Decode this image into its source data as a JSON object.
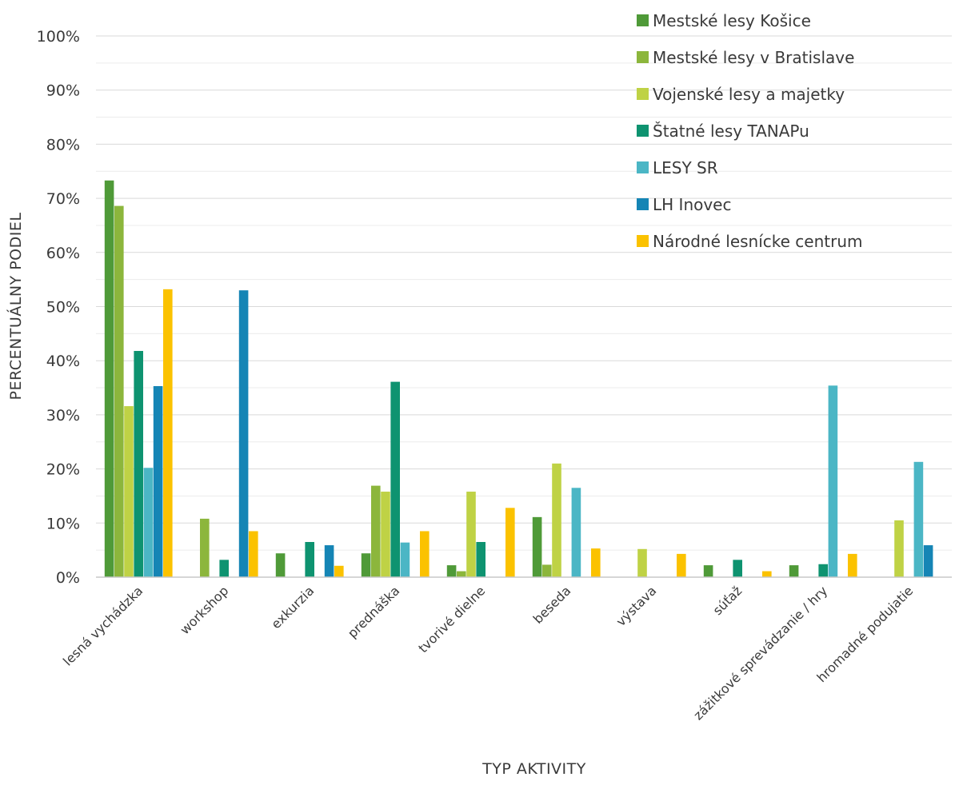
{
  "chart_data": {
    "type": "bar",
    "xlabel": "TYP AKTIVITY",
    "ylabel": "PERCENTUÁLNY PODIEL",
    "ylim": [
      0,
      100
    ],
    "ytick_step": 10,
    "grid": true,
    "legend_placement": "top-right",
    "y_tick_labels": [
      "0%",
      "10%",
      "20%",
      "30%",
      "40%",
      "50%",
      "60%",
      "70%",
      "80%",
      "90%",
      "100%"
    ],
    "categories": [
      "lesná vychádzka",
      "workshop",
      "exkurzia",
      "prednáška",
      "tvorivé dielne",
      "beseda",
      "výstava",
      "súťaž",
      "zážitkové sprevádzanie / hry",
      "hromadné podujatie"
    ],
    "series": [
      {
        "name": "Mestské lesy Košice",
        "color": "#4f9a38",
        "values": [
          73.3,
          0,
          4.4,
          4.4,
          2.2,
          11.1,
          0,
          2.2,
          2.2,
          0
        ]
      },
      {
        "name": "Mestské lesy v Bratislave",
        "color": "#8cb63c",
        "values": [
          68.6,
          10.8,
          0,
          16.9,
          1.1,
          2.3,
          0,
          0,
          0,
          0
        ]
      },
      {
        "name": "Vojenské lesy a majetky",
        "color": "#bfd245",
        "values": [
          31.6,
          0,
          0,
          15.8,
          15.8,
          21.0,
          5.2,
          0,
          0,
          10.5
        ]
      },
      {
        "name": "Štatné lesy TANAPu",
        "color": "#0e9370",
        "values": [
          41.8,
          3.2,
          6.5,
          36.1,
          6.5,
          0,
          0,
          3.2,
          2.4,
          0
        ]
      },
      {
        "name": "LESY SR",
        "color": "#4bb6c5",
        "values": [
          20.2,
          0,
          0,
          6.4,
          0,
          16.5,
          0,
          0,
          35.4,
          21.3
        ]
      },
      {
        "name": "LH Inovec",
        "color": "#1585b5",
        "values": [
          35.3,
          53.0,
          5.9,
          0,
          0,
          0,
          0,
          0,
          0,
          5.9
        ]
      },
      {
        "name": "Národné lesnícke centrum",
        "color": "#fbc200",
        "values": [
          53.2,
          8.5,
          2.1,
          8.5,
          12.8,
          5.3,
          4.3,
          1.1,
          4.3,
          0
        ]
      }
    ]
  }
}
